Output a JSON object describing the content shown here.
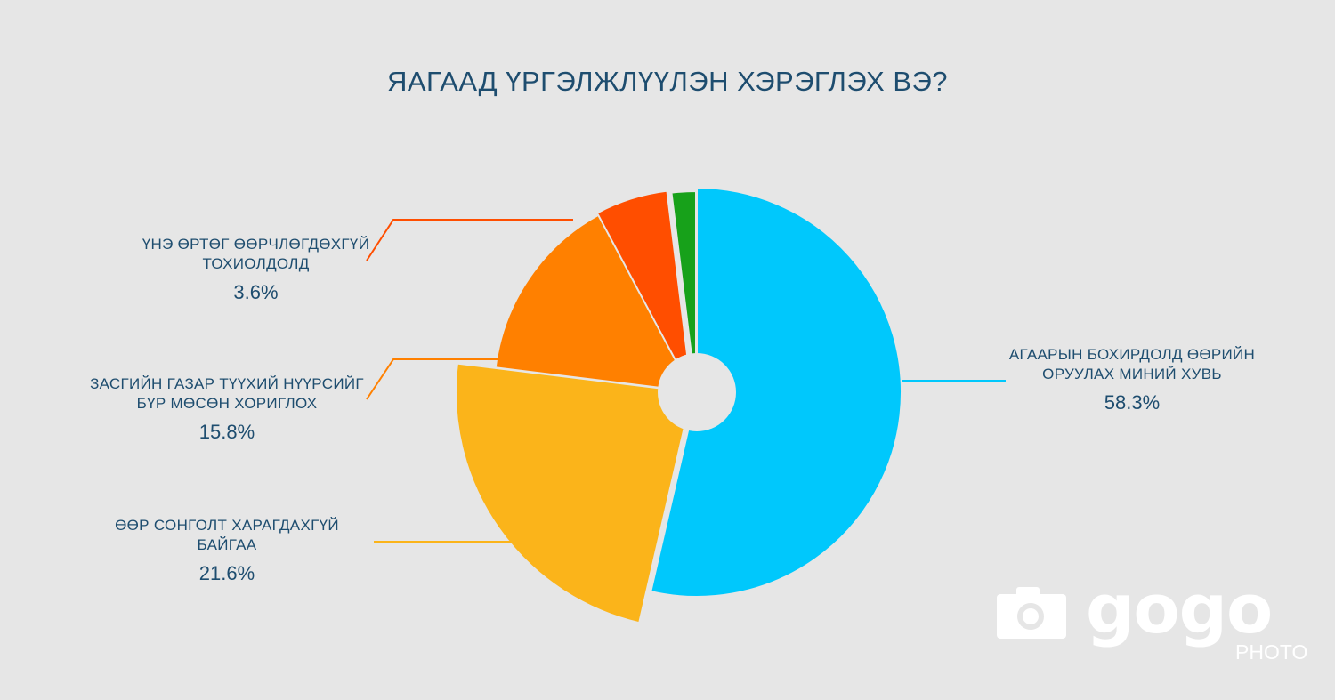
{
  "chart_data": {
    "type": "pie",
    "title": "ЯАГААД ҮРГЭЛЖЛҮҮЛЭН ХЭРЭГЛЭХ ВЭ?",
    "slices": [
      {
        "key": "air",
        "label_lines": [
          "АГААРЫН БОХИРДОЛД ӨӨРИЙН",
          "ОРУУЛАХ МИНИЙ ХУВЬ"
        ],
        "value_text": "58.3%",
        "color": "#00c8fc"
      },
      {
        "key": "other",
        "label_lines": [
          "ӨӨР СОНГОЛТ ХАРАГДАХГҮЙ БАЙГАА"
        ],
        "value_text": "21.6%",
        "color": "#fbb41a"
      },
      {
        "key": "gov",
        "label_lines": [
          "ЗАСГИЙН ГАЗАР ТҮҮХИЙ НҮҮРСИЙГ",
          "БҮР МӨСӨН ХОРИГЛОХ"
        ],
        "value_text": "15.8%",
        "color": "#ff8000"
      },
      {
        "key": "price",
        "label_lines": [
          "ҮНЭ ӨРТӨГ ӨӨРЧЛӨГДӨХГҮЙ",
          "ТОХИОЛДОЛД"
        ],
        "value_text": "3.6%",
        "color": "#ff4e00"
      },
      {
        "key": "unlabeled",
        "label_lines": [],
        "value_text": "",
        "color": "#17a11a"
      }
    ]
  },
  "watermark": {
    "brand": "gogo",
    "sub": "PHOTO"
  }
}
